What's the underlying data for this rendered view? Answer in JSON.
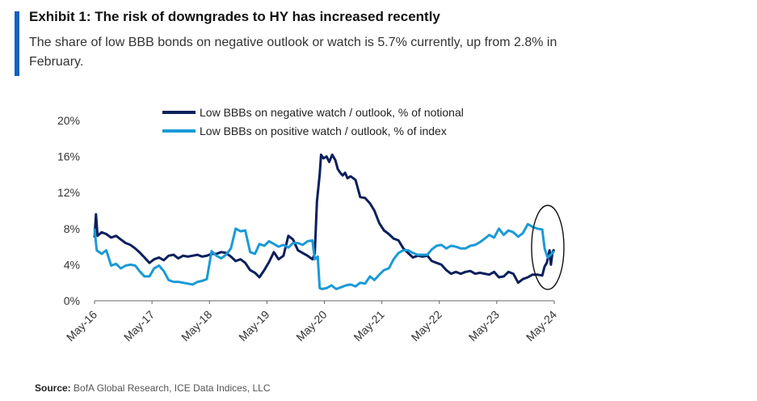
{
  "header": {
    "title": "Exhibit 1: The risk of downgrades to HY has increased recently",
    "subtitle": "The share of low BBB bonds on negative outlook or watch is 5.7% currently, up from 2.8% in February."
  },
  "footer": {
    "source_label": "Source:",
    "source_text": "BofA Global Research, ICE Data Indices, LLC"
  },
  "colors": {
    "accent": "#1560bd",
    "series_dark": "#0b1f5c",
    "series_light": "#1a9ad6"
  },
  "chart_data": {
    "type": "line",
    "title": "",
    "xlabel": "",
    "ylabel": "",
    "x_tick_labels": [
      "May-16",
      "May-17",
      "May-18",
      "May-19",
      "May-20",
      "May-21",
      "May-22",
      "May-23",
      "May-24"
    ],
    "y_tick_labels": [
      "0%",
      "4%",
      "8%",
      "12%",
      "16%",
      "20%"
    ],
    "ylim": [
      0,
      20
    ],
    "xlim": [
      "2016-05",
      "2024-05"
    ],
    "grid": false,
    "legend_position": "top-center",
    "annotation": "ellipse around latest values (May-24)",
    "series": [
      {
        "name": "Low BBBs on negative watch / outlook, % of notional",
        "color": "#0b1f5c",
        "points": [
          [
            "2016-05-01",
            7.0
          ],
          [
            "2016-05-10",
            9.6
          ],
          [
            "2016-05-20",
            7.2
          ],
          [
            "2016-06-15",
            7.6
          ],
          [
            "2016-07-15",
            7.4
          ],
          [
            "2016-08-15",
            7.0
          ],
          [
            "2016-09-15",
            7.2
          ],
          [
            "2016-10-15",
            6.8
          ],
          [
            "2016-11-15",
            6.4
          ],
          [
            "2016-12-15",
            6.2
          ],
          [
            "2017-01-15",
            5.8
          ],
          [
            "2017-02-15",
            5.3
          ],
          [
            "2017-03-15",
            4.8
          ],
          [
            "2017-04-15",
            4.2
          ],
          [
            "2017-05-15",
            4.6
          ],
          [
            "2017-06-15",
            4.8
          ],
          [
            "2017-07-15",
            4.5
          ],
          [
            "2017-08-15",
            5.0
          ],
          [
            "2017-09-15",
            5.1
          ],
          [
            "2017-10-15",
            4.7
          ],
          [
            "2017-11-15",
            5.0
          ],
          [
            "2017-12-15",
            4.9
          ],
          [
            "2018-01-15",
            5.0
          ],
          [
            "2018-02-15",
            5.1
          ],
          [
            "2018-03-15",
            4.9
          ],
          [
            "2018-04-15",
            5.0
          ],
          [
            "2018-05-15",
            5.2
          ],
          [
            "2018-06-15",
            5.2
          ],
          [
            "2018-07-15",
            5.4
          ],
          [
            "2018-08-15",
            5.3
          ],
          [
            "2018-09-15",
            4.9
          ],
          [
            "2018-10-15",
            4.4
          ],
          [
            "2018-11-15",
            4.6
          ],
          [
            "2018-12-15",
            4.2
          ],
          [
            "2019-01-15",
            3.4
          ],
          [
            "2019-02-15",
            3.1
          ],
          [
            "2019-03-15",
            2.6
          ],
          [
            "2019-04-15",
            3.4
          ],
          [
            "2019-05-15",
            4.3
          ],
          [
            "2019-06-15",
            5.4
          ],
          [
            "2019-07-15",
            4.6
          ],
          [
            "2019-08-15",
            5.0
          ],
          [
            "2019-09-15",
            7.2
          ],
          [
            "2019-10-15",
            6.8
          ],
          [
            "2019-11-15",
            5.6
          ],
          [
            "2019-12-15",
            5.3
          ],
          [
            "2020-01-15",
            5.0
          ],
          [
            "2020-02-15",
            4.6
          ],
          [
            "2020-03-01",
            5.2
          ],
          [
            "2020-03-15",
            11.0
          ],
          [
            "2020-04-01",
            14.0
          ],
          [
            "2020-04-10",
            16.2
          ],
          [
            "2020-04-25",
            15.8
          ],
          [
            "2020-05-15",
            16.0
          ],
          [
            "2020-06-01",
            15.4
          ],
          [
            "2020-06-20",
            16.2
          ],
          [
            "2020-07-10",
            15.6
          ],
          [
            "2020-07-25",
            14.6
          ],
          [
            "2020-08-10",
            14.2
          ],
          [
            "2020-08-25",
            13.9
          ],
          [
            "2020-09-10",
            14.2
          ],
          [
            "2020-09-25",
            13.6
          ],
          [
            "2020-10-15",
            13.8
          ],
          [
            "2020-11-15",
            13.4
          ],
          [
            "2020-12-15",
            11.5
          ],
          [
            "2021-01-15",
            11.4
          ],
          [
            "2021-02-15",
            10.8
          ],
          [
            "2021-03-15",
            10.0
          ],
          [
            "2021-04-15",
            8.6
          ],
          [
            "2021-05-15",
            7.8
          ],
          [
            "2021-06-15",
            7.4
          ],
          [
            "2021-07-15",
            6.9
          ],
          [
            "2021-08-15",
            6.7
          ],
          [
            "2021-09-15",
            5.8
          ],
          [
            "2021-10-15",
            5.3
          ],
          [
            "2021-11-15",
            4.8
          ],
          [
            "2021-12-15",
            5.0
          ],
          [
            "2022-01-15",
            4.9
          ],
          [
            "2022-02-15",
            5.0
          ],
          [
            "2022-03-15",
            4.4
          ],
          [
            "2022-04-15",
            4.2
          ],
          [
            "2022-05-15",
            4.0
          ],
          [
            "2022-06-15",
            3.4
          ],
          [
            "2022-07-15",
            3.0
          ],
          [
            "2022-08-15",
            3.2
          ],
          [
            "2022-09-15",
            3.0
          ],
          [
            "2022-10-15",
            3.2
          ],
          [
            "2022-11-15",
            3.3
          ],
          [
            "2022-12-15",
            3.0
          ],
          [
            "2023-01-15",
            3.1
          ],
          [
            "2023-02-15",
            3.0
          ],
          [
            "2023-03-15",
            2.9
          ],
          [
            "2023-04-15",
            3.2
          ],
          [
            "2023-05-15",
            2.6
          ],
          [
            "2023-06-15",
            2.7
          ],
          [
            "2023-07-15",
            3.2
          ],
          [
            "2023-08-15",
            3.0
          ],
          [
            "2023-09-15",
            2.0
          ],
          [
            "2023-10-15",
            2.4
          ],
          [
            "2023-11-15",
            2.6
          ],
          [
            "2023-12-15",
            2.9
          ],
          [
            "2024-01-15",
            2.9
          ],
          [
            "2024-02-15",
            2.8
          ],
          [
            "2024-03-01",
            3.8
          ],
          [
            "2024-03-15",
            4.2
          ],
          [
            "2024-04-01",
            5.6
          ],
          [
            "2024-04-10",
            4.0
          ],
          [
            "2024-04-20",
            5.4
          ],
          [
            "2024-05-01",
            5.7
          ]
        ]
      },
      {
        "name": "Low BBBs on positive watch / outlook, % of index",
        "color": "#1a9ad6",
        "points": [
          [
            "2016-05-01",
            8.0
          ],
          [
            "2016-05-15",
            5.6
          ],
          [
            "2016-06-15",
            5.2
          ],
          [
            "2016-07-15",
            5.6
          ],
          [
            "2016-08-15",
            3.9
          ],
          [
            "2016-09-15",
            4.1
          ],
          [
            "2016-10-15",
            3.6
          ],
          [
            "2016-11-15",
            3.9
          ],
          [
            "2016-12-15",
            4.0
          ],
          [
            "2017-01-15",
            3.9
          ],
          [
            "2017-02-15",
            3.2
          ],
          [
            "2017-03-15",
            2.7
          ],
          [
            "2017-04-15",
            2.7
          ],
          [
            "2017-05-15",
            3.6
          ],
          [
            "2017-06-15",
            3.9
          ],
          [
            "2017-07-15",
            3.3
          ],
          [
            "2017-08-15",
            2.3
          ],
          [
            "2017-09-15",
            2.1
          ],
          [
            "2017-10-15",
            2.1
          ],
          [
            "2017-11-15",
            2.0
          ],
          [
            "2017-12-15",
            1.9
          ],
          [
            "2018-01-15",
            1.8
          ],
          [
            "2018-02-15",
            2.1
          ],
          [
            "2018-03-15",
            2.2
          ],
          [
            "2018-04-15",
            2.4
          ],
          [
            "2018-05-15",
            5.5
          ],
          [
            "2018-06-15",
            5.0
          ],
          [
            "2018-07-15",
            4.7
          ],
          [
            "2018-08-15",
            5.1
          ],
          [
            "2018-09-15",
            5.8
          ],
          [
            "2018-10-15",
            8.0
          ],
          [
            "2018-11-15",
            7.7
          ],
          [
            "2018-12-15",
            7.8
          ],
          [
            "2019-01-15",
            5.4
          ],
          [
            "2019-02-15",
            5.2
          ],
          [
            "2019-03-15",
            6.3
          ],
          [
            "2019-04-15",
            6.1
          ],
          [
            "2019-05-15",
            6.6
          ],
          [
            "2019-06-15",
            6.3
          ],
          [
            "2019-07-15",
            6.0
          ],
          [
            "2019-08-15",
            6.2
          ],
          [
            "2019-09-15",
            5.9
          ],
          [
            "2019-10-15",
            6.4
          ],
          [
            "2019-11-15",
            6.4
          ],
          [
            "2019-12-15",
            6.2
          ],
          [
            "2020-01-15",
            6.6
          ],
          [
            "2020-02-15",
            6.7
          ],
          [
            "2020-03-01",
            4.6
          ],
          [
            "2020-03-20",
            4.9
          ],
          [
            "2020-04-01",
            1.4
          ],
          [
            "2020-04-15",
            1.3
          ],
          [
            "2020-05-15",
            1.4
          ],
          [
            "2020-06-15",
            1.7
          ],
          [
            "2020-07-15",
            1.3
          ],
          [
            "2020-08-15",
            1.5
          ],
          [
            "2020-09-15",
            1.7
          ],
          [
            "2020-10-15",
            1.8
          ],
          [
            "2020-11-15",
            1.6
          ],
          [
            "2020-12-15",
            2.0
          ],
          [
            "2021-01-15",
            1.9
          ],
          [
            "2021-02-15",
            2.7
          ],
          [
            "2021-03-15",
            2.3
          ],
          [
            "2021-04-15",
            2.9
          ],
          [
            "2021-05-15",
            3.4
          ],
          [
            "2021-06-15",
            3.6
          ],
          [
            "2021-07-15",
            4.6
          ],
          [
            "2021-08-15",
            5.3
          ],
          [
            "2021-09-15",
            5.6
          ],
          [
            "2021-10-15",
            5.6
          ],
          [
            "2021-11-15",
            5.3
          ],
          [
            "2021-12-15",
            5.1
          ],
          [
            "2022-01-15",
            5.1
          ],
          [
            "2022-02-15",
            5.1
          ],
          [
            "2022-03-15",
            5.7
          ],
          [
            "2022-04-15",
            6.1
          ],
          [
            "2022-05-15",
            6.2
          ],
          [
            "2022-06-15",
            5.8
          ],
          [
            "2022-07-15",
            6.1
          ],
          [
            "2022-08-15",
            6.0
          ],
          [
            "2022-09-15",
            5.8
          ],
          [
            "2022-10-15",
            5.8
          ],
          [
            "2022-11-15",
            6.1
          ],
          [
            "2022-12-15",
            6.2
          ],
          [
            "2023-01-15",
            6.5
          ],
          [
            "2023-02-15",
            6.9
          ],
          [
            "2023-03-15",
            7.3
          ],
          [
            "2023-04-15",
            7.0
          ],
          [
            "2023-05-15",
            8.0
          ],
          [
            "2023-06-15",
            7.3
          ],
          [
            "2023-07-15",
            7.8
          ],
          [
            "2023-08-15",
            7.6
          ],
          [
            "2023-09-15",
            7.1
          ],
          [
            "2023-10-15",
            7.5
          ],
          [
            "2023-11-15",
            8.5
          ],
          [
            "2023-12-15",
            8.2
          ],
          [
            "2024-01-15",
            8.0
          ],
          [
            "2024-02-15",
            7.9
          ],
          [
            "2024-03-01",
            5.8
          ],
          [
            "2024-03-20",
            4.8
          ],
          [
            "2024-04-15",
            5.2
          ],
          [
            "2024-05-01",
            5.5
          ]
        ]
      }
    ]
  }
}
